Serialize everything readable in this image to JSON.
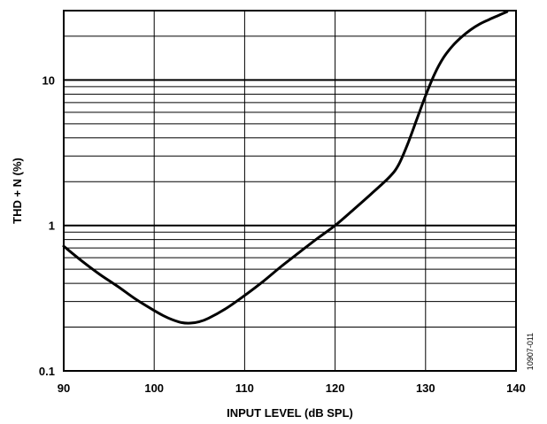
{
  "chart_data": {
    "type": "line",
    "xlabel": "INPUT LEVEL (dB SPL)",
    "ylabel": "THD + N (%)",
    "xlim": [
      90,
      140
    ],
    "ylim": [
      0.1,
      30
    ],
    "yscale": "log",
    "grid": true,
    "x_ticks": [
      90,
      100,
      110,
      120,
      130,
      140
    ],
    "x_tick_labels": [
      "90",
      "100",
      "110",
      "120",
      "130",
      "140"
    ],
    "y_ticks": [
      0.1,
      1,
      10
    ],
    "y_tick_labels": [
      "0.1",
      "1",
      "10"
    ],
    "figure_id": "10907-011",
    "series": [
      {
        "x": [
          90,
          92,
          94,
          96,
          98,
          100,
          101,
          102,
          103,
          104,
          105,
          106,
          108,
          110,
          112,
          114,
          116,
          118,
          120,
          122,
          124,
          126,
          127,
          128,
          129,
          130,
          131,
          132,
          133,
          134,
          135,
          136,
          137,
          138,
          139
        ],
        "y": [
          0.72,
          0.57,
          0.46,
          0.38,
          0.31,
          0.26,
          0.24,
          0.225,
          0.215,
          0.213,
          0.218,
          0.23,
          0.27,
          0.33,
          0.41,
          0.52,
          0.65,
          0.81,
          1.0,
          1.28,
          1.65,
          2.15,
          2.6,
          3.6,
          5.3,
          7.8,
          11.0,
          14.3,
          17.2,
          19.8,
          22.2,
          24.3,
          26.0,
          27.7,
          29.5
        ]
      }
    ]
  }
}
